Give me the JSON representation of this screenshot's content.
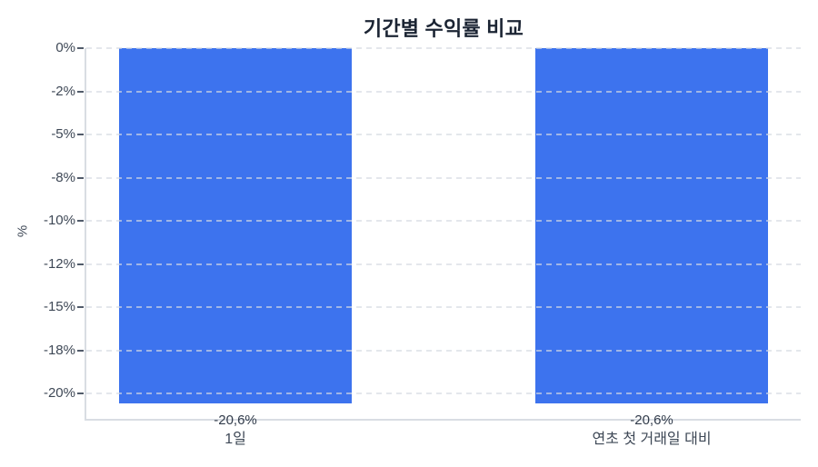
{
  "chart_data": {
    "type": "bar",
    "title": "기간별 수익률 비교",
    "xlabel": "",
    "ylabel": "%",
    "categories": [
      "1일",
      "연초 첫 거래일 대비"
    ],
    "values": [
      -20.6,
      -20.6
    ],
    "value_labels": [
      "-20,6%",
      "-20,6%"
    ],
    "ytick_labels": [
      "0%",
      "-2%",
      "-5%",
      "-8%",
      "-10%",
      "-12%",
      "-15%",
      "-18%",
      "-20%"
    ],
    "ytick_values": [
      0,
      -2.5,
      -5,
      -7.5,
      -10,
      -12.5,
      -15,
      -17.5,
      -20
    ],
    "ylim": [
      -21.6,
      0
    ],
    "grid": "horizontal-dashed",
    "legend": "none",
    "bar_color": "#3d73ee",
    "axis_color": "#d9dde3",
    "gridline_color": "#d6dae2",
    "title_color": "#1b2433",
    "tick_text_color": "#3e4856",
    "background": "#ffffff"
  }
}
